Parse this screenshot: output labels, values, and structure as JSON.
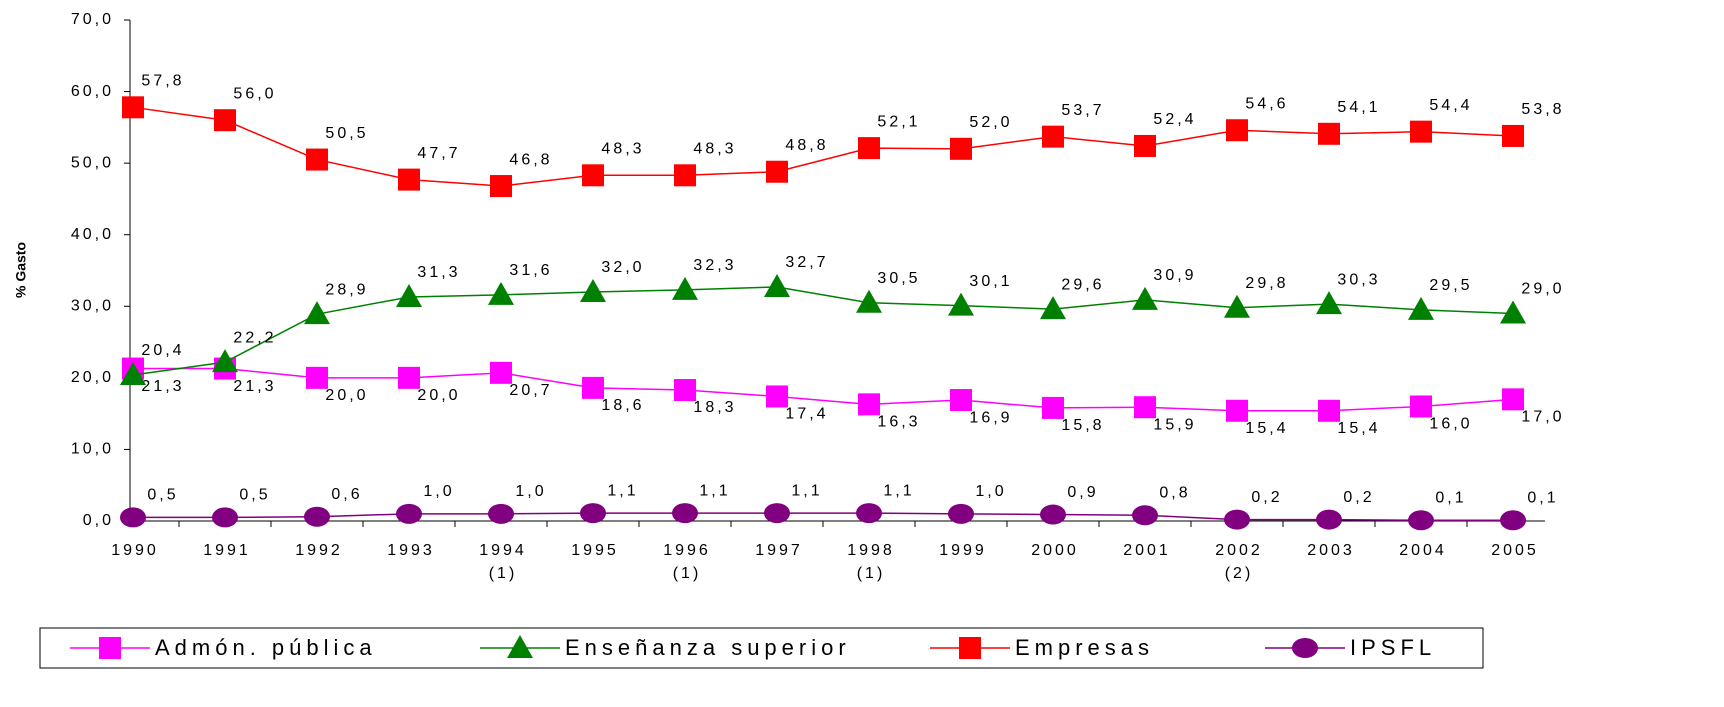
{
  "chart_data": {
    "type": "line",
    "y_label": "% Gasto",
    "categories": [
      "1990",
      "1991",
      "1992",
      "1993",
      "1994",
      "1995",
      "1996",
      "1997",
      "1998",
      "1999",
      "2000",
      "2001",
      "2002",
      "2003",
      "2004",
      "2005"
    ],
    "category_notes": [
      null,
      null,
      null,
      null,
      "(1)",
      null,
      "(1)",
      null,
      "(1)",
      null,
      null,
      null,
      "(2)",
      null,
      null,
      null
    ],
    "ylim": [
      0,
      70
    ],
    "yticks": [
      {
        "value": 0,
        "label": "0,0"
      },
      {
        "value": 10,
        "label": "10,0"
      },
      {
        "value": 20,
        "label": "20,0"
      },
      {
        "value": 30,
        "label": "30,0"
      },
      {
        "value": 40,
        "label": "40,0"
      },
      {
        "value": 50,
        "label": "50,0"
      },
      {
        "value": 60,
        "label": "60,0"
      },
      {
        "value": 70,
        "label": "70,0"
      }
    ],
    "series": [
      {
        "name": "Admón. pública",
        "color": "#ff00ff",
        "marker": "square",
        "values": [
          21.3,
          21.3,
          20.0,
          20.0,
          20.7,
          18.6,
          18.3,
          17.4,
          16.3,
          16.9,
          15.8,
          15.9,
          15.4,
          15.4,
          16.0,
          17.0
        ],
        "value_labels": [
          "21,3",
          "21,3",
          "20,0",
          "20,0",
          "20,7",
          "18,6",
          "18,3",
          "17,4",
          "16,3",
          "16,9",
          "15,8",
          "15,9",
          "15,4",
          "15,4",
          "16,0",
          "17,0"
        ]
      },
      {
        "name": "Enseñanza superior",
        "color": "#008000",
        "marker": "triangle",
        "values": [
          20.4,
          22.2,
          28.9,
          31.3,
          31.6,
          32.0,
          32.3,
          32.7,
          30.5,
          30.1,
          29.6,
          30.9,
          29.8,
          30.3,
          29.5,
          29.0
        ],
        "value_labels": [
          "20,4",
          "22,2",
          "28,9",
          "31,3",
          "31,6",
          "32,0",
          "32,3",
          "32,7",
          "30,5",
          "30,1",
          "29,6",
          "30,9",
          "29,8",
          "30,3",
          "29,5",
          "29,0"
        ]
      },
      {
        "name": "Empresas",
        "color": "#ff0000",
        "marker": "square",
        "values": [
          57.8,
          56.0,
          50.5,
          47.7,
          46.8,
          48.3,
          48.3,
          48.8,
          52.1,
          52.0,
          53.7,
          52.4,
          54.6,
          54.1,
          54.4,
          53.8
        ],
        "value_labels": [
          "57,8",
          "56,0",
          "50,5",
          "47,7",
          "46,8",
          "48,3",
          "48,3",
          "48,8",
          "52,1",
          "52,0",
          "53,7",
          "52,4",
          "54,6",
          "54,1",
          "54,4",
          "53,8"
        ]
      },
      {
        "name": "IPSFL",
        "color": "#800080",
        "marker": "circle",
        "values": [
          0.5,
          0.5,
          0.6,
          1.0,
          1.0,
          1.1,
          1.1,
          1.1,
          1.1,
          1.0,
          0.9,
          0.8,
          0.2,
          0.2,
          0.1,
          0.1
        ],
        "value_labels": [
          "0,5",
          "0,5",
          "0,6",
          "1,0",
          "1,0",
          "1,1",
          "1,1",
          "1,1",
          "1,1",
          "1,0",
          "0,9",
          "0,8",
          "0,2",
          "0,2",
          "0,1",
          "0,1"
        ]
      }
    ]
  }
}
